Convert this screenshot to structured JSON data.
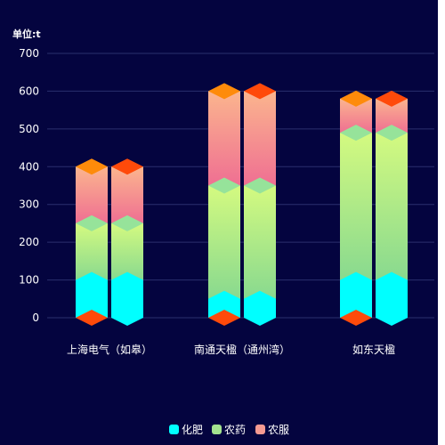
{
  "chart_data": {
    "type": "bar",
    "unit_label": "单位:t",
    "categories": [
      "上海电气（如皋）",
      "南通天楹（通州湾）",
      "如东天楹"
    ],
    "series": [
      {
        "name": "化肥",
        "values": [
          [
            100,
            100
          ],
          [
            50,
            50
          ],
          [
            100,
            100
          ]
        ],
        "color": "#00ffff"
      },
      {
        "name": "农药",
        "values": [
          [
            150,
            150
          ],
          [
            300,
            300
          ],
          [
            390,
            390
          ]
        ],
        "color_top": "#d4fa80",
        "color_bottom": "#88d98f"
      },
      {
        "name": "农服",
        "values": [
          [
            150,
            150
          ],
          [
            250,
            250
          ],
          [
            90,
            90
          ]
        ],
        "color_top": "#fbb58e",
        "color_bottom": "#ef6f92"
      }
    ],
    "cap_colors": [
      "#fe8b0a",
      "#ff4a0a"
    ],
    "ylim": [
      0,
      700
    ],
    "yticks": [
      0,
      100,
      200,
      300,
      400,
      500,
      600,
      700
    ],
    "grid": true,
    "legend_position": "bottom-center"
  },
  "colors": {
    "background": "#04043f",
    "grid": "#2a2f6e"
  }
}
